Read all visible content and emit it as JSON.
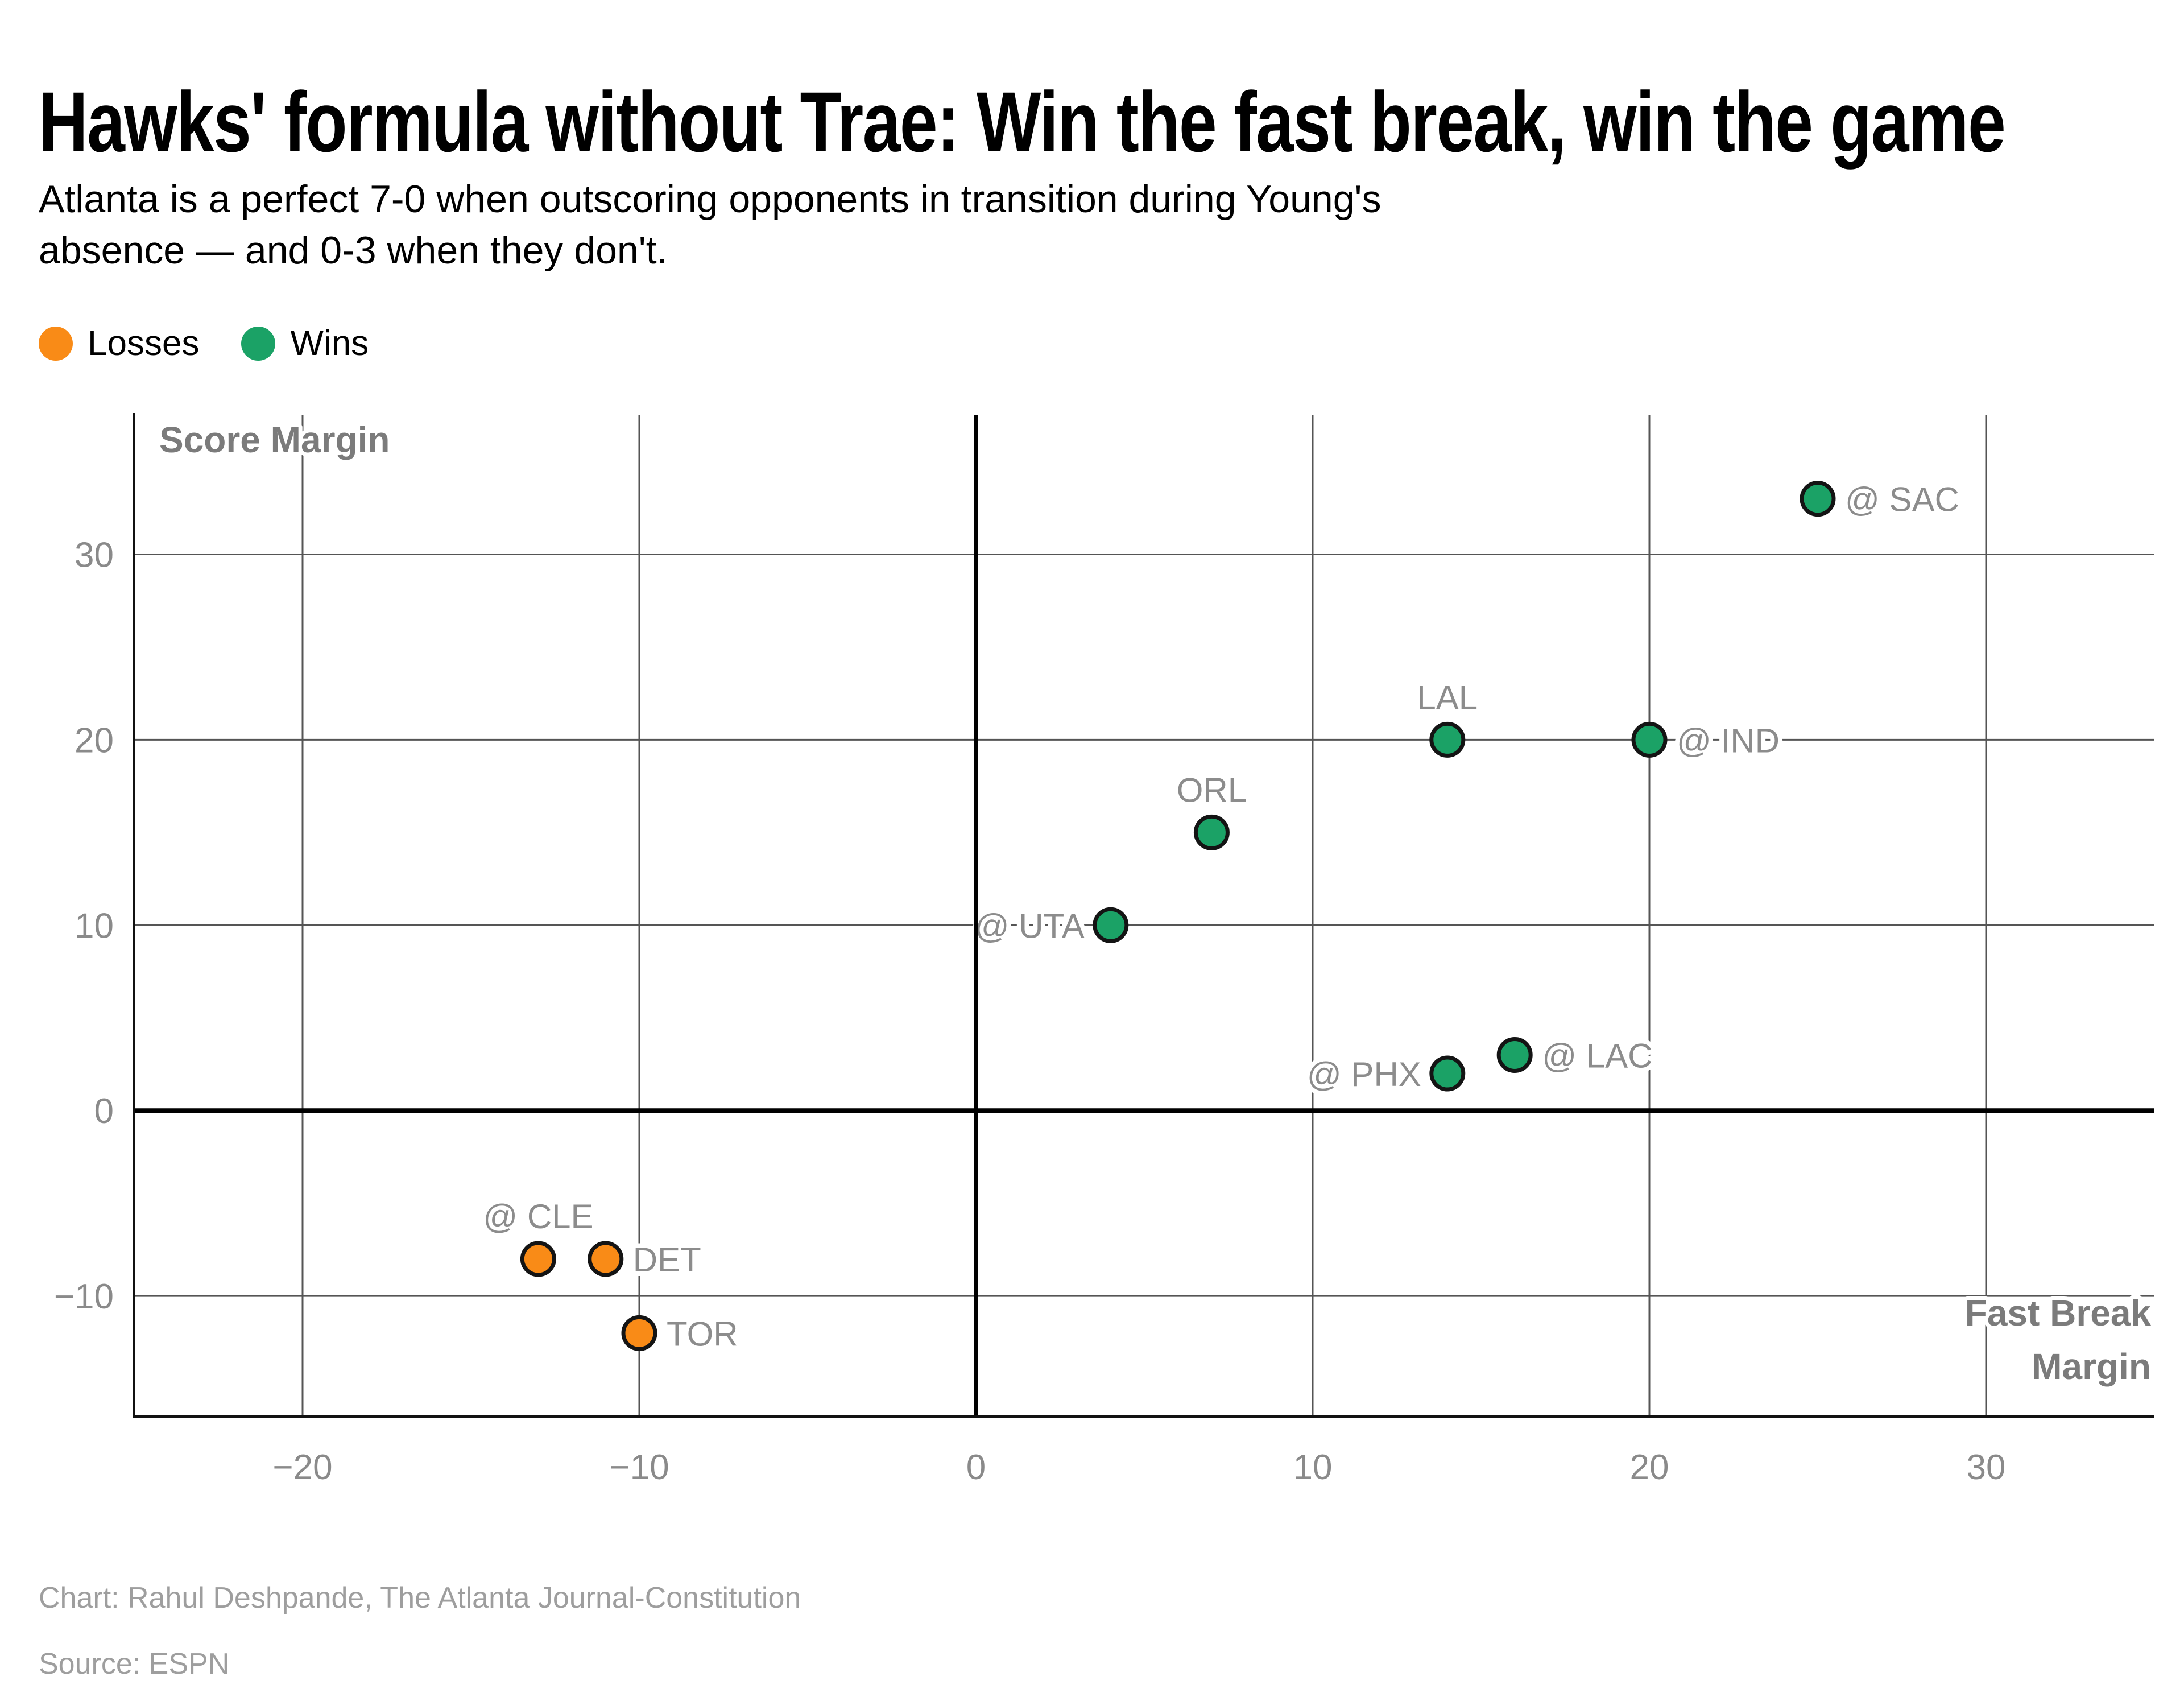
{
  "title": "Hawks' formula without Trae: Win the fast break, win the game",
  "subtitle": "Atlanta is a perfect 7-0 when outscoring opponents in transition during Young's absence — and 0-3 when they don't.",
  "legend": {
    "losses_label": "Losses",
    "wins_label": "Wins"
  },
  "footer": {
    "credit": "Chart: Rahul Deshpande, The Atlanta Journal-Constitution",
    "source": "Source: ESPN"
  },
  "colors": {
    "win": "#1ba266",
    "loss": "#f98b17",
    "dot_stroke": "#141414",
    "grid": "#555555",
    "zero_axis": "#000000",
    "border": "#111111",
    "point_label": "#8c8c8c",
    "tick_label": "#8a8a8a",
    "axis_title": "#7b7b7b"
  },
  "chart_data": {
    "type": "scatter",
    "title": "Hawks' formula without Trae: Win the fast break, win the game",
    "xlabel": "Fast Break Margin",
    "ylabel": "Score Margin",
    "xlim": [
      -25,
      35
    ],
    "ylim": [
      -16.5,
      37.5
    ],
    "x_ticks": [
      -20,
      -10,
      0,
      10,
      20,
      30
    ],
    "y_ticks": [
      -10,
      0,
      10,
      20,
      30
    ],
    "grid": true,
    "legend_position": "top-left",
    "series": [
      {
        "name": "Wins",
        "points": [
          {
            "label": "@ SAC",
            "x": 25,
            "y": 33,
            "label_pos": "right"
          },
          {
            "label": "LAL",
            "x": 14,
            "y": 20,
            "label_pos": "above"
          },
          {
            "label": "@ IND",
            "x": 20,
            "y": 20,
            "label_pos": "right"
          },
          {
            "label": "ORL",
            "x": 7,
            "y": 15,
            "label_pos": "above"
          },
          {
            "label": "@ UTA",
            "x": 4,
            "y": 10,
            "label_pos": "left"
          },
          {
            "label": "@ LAC",
            "x": 16,
            "y": 3,
            "label_pos": "right"
          },
          {
            "label": "@ PHX",
            "x": 14,
            "y": 2,
            "label_pos": "left"
          }
        ]
      },
      {
        "name": "Losses",
        "points": [
          {
            "label": "@ CLE",
            "x": -13,
            "y": -8,
            "label_pos": "above"
          },
          {
            "label": "DET",
            "x": -11,
            "y": -8,
            "label_pos": "right"
          },
          {
            "label": "TOR",
            "x": -10,
            "y": -12,
            "label_pos": "right"
          }
        ]
      }
    ]
  }
}
